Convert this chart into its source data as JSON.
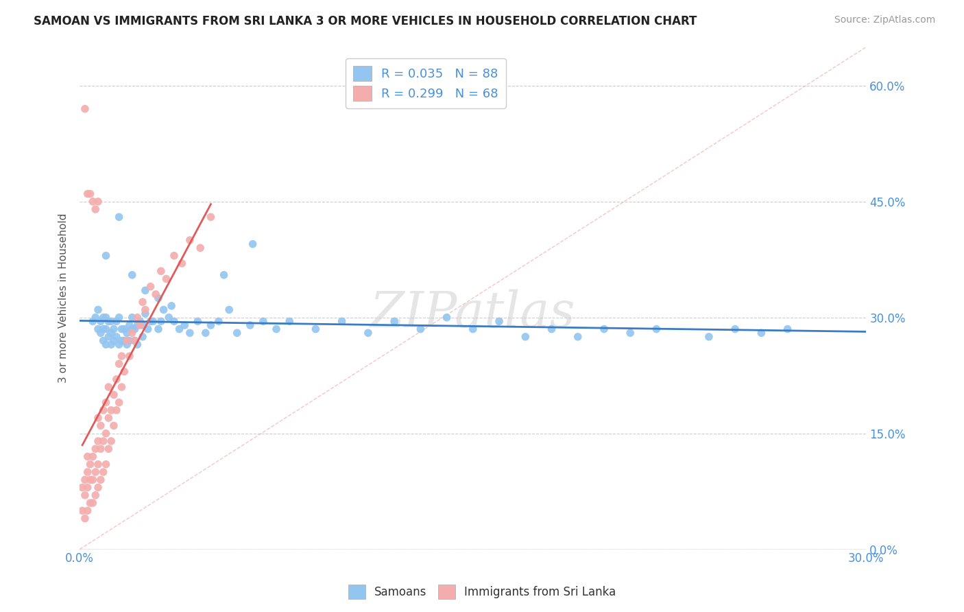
{
  "title": "SAMOAN VS IMMIGRANTS FROM SRI LANKA 3 OR MORE VEHICLES IN HOUSEHOLD CORRELATION CHART",
  "source": "Source: ZipAtlas.com",
  "xmin": 0.0,
  "xmax": 0.3,
  "ymin": 0.0,
  "ymax": 0.65,
  "yticks": [
    0.0,
    0.15,
    0.3,
    0.45,
    0.6
  ],
  "ytick_labels": [
    "0.0%",
    "15.0%",
    "30.0%",
    "45.0%",
    "60.0%"
  ],
  "legend_label1": "R = 0.035   N = 88",
  "legend_label2": "R = 0.299   N = 68",
  "watermark": "ZIPatlas",
  "blue_color": "#92C5F0",
  "pink_color": "#F4ACAC",
  "blue_line_color": "#3A7CC4",
  "pink_line_color": "#E05A5A",
  "background_color": "#FFFFFF",
  "grid_color": "#CCCCCC",
  "blue_scatter_x": [
    0.005,
    0.006,
    0.007,
    0.007,
    0.008,
    0.008,
    0.009,
    0.009,
    0.009,
    0.01,
    0.01,
    0.01,
    0.011,
    0.011,
    0.012,
    0.012,
    0.012,
    0.013,
    0.013,
    0.014,
    0.014,
    0.015,
    0.015,
    0.016,
    0.016,
    0.017,
    0.017,
    0.018,
    0.018,
    0.019,
    0.019,
    0.02,
    0.02,
    0.021,
    0.021,
    0.022,
    0.022,
    0.023,
    0.024,
    0.024,
    0.025,
    0.026,
    0.027,
    0.028,
    0.03,
    0.031,
    0.032,
    0.034,
    0.036,
    0.038,
    0.04,
    0.042,
    0.045,
    0.048,
    0.05,
    0.053,
    0.057,
    0.06,
    0.065,
    0.07,
    0.075,
    0.08,
    0.09,
    0.1,
    0.11,
    0.12,
    0.13,
    0.14,
    0.15,
    0.16,
    0.17,
    0.18,
    0.19,
    0.2,
    0.21,
    0.22,
    0.24,
    0.25,
    0.26,
    0.27,
    0.01,
    0.015,
    0.02,
    0.025,
    0.03,
    0.035,
    0.055,
    0.066
  ],
  "blue_scatter_y": [
    0.295,
    0.3,
    0.285,
    0.31,
    0.28,
    0.295,
    0.27,
    0.285,
    0.3,
    0.265,
    0.285,
    0.3,
    0.275,
    0.295,
    0.265,
    0.28,
    0.295,
    0.27,
    0.285,
    0.275,
    0.295,
    0.265,
    0.3,
    0.27,
    0.285,
    0.27,
    0.285,
    0.265,
    0.28,
    0.27,
    0.29,
    0.285,
    0.3,
    0.27,
    0.285,
    0.265,
    0.29,
    0.295,
    0.275,
    0.29,
    0.305,
    0.285,
    0.295,
    0.295,
    0.285,
    0.295,
    0.31,
    0.3,
    0.295,
    0.285,
    0.29,
    0.28,
    0.295,
    0.28,
    0.29,
    0.295,
    0.31,
    0.28,
    0.29,
    0.295,
    0.285,
    0.295,
    0.285,
    0.295,
    0.28,
    0.295,
    0.285,
    0.3,
    0.285,
    0.295,
    0.275,
    0.285,
    0.275,
    0.285,
    0.28,
    0.285,
    0.275,
    0.285,
    0.28,
    0.285,
    0.38,
    0.43,
    0.355,
    0.335,
    0.325,
    0.315,
    0.355,
    0.395
  ],
  "pink_scatter_x": [
    0.001,
    0.001,
    0.002,
    0.002,
    0.002,
    0.003,
    0.003,
    0.003,
    0.003,
    0.004,
    0.004,
    0.004,
    0.005,
    0.005,
    0.005,
    0.006,
    0.006,
    0.006,
    0.007,
    0.007,
    0.007,
    0.007,
    0.008,
    0.008,
    0.008,
    0.009,
    0.009,
    0.009,
    0.01,
    0.01,
    0.01,
    0.011,
    0.011,
    0.011,
    0.012,
    0.012,
    0.013,
    0.013,
    0.014,
    0.014,
    0.015,
    0.015,
    0.016,
    0.016,
    0.017,
    0.018,
    0.019,
    0.02,
    0.021,
    0.022,
    0.023,
    0.024,
    0.025,
    0.027,
    0.029,
    0.031,
    0.033,
    0.036,
    0.039,
    0.042,
    0.046,
    0.05,
    0.002,
    0.003,
    0.004,
    0.005,
    0.006,
    0.007
  ],
  "pink_scatter_y": [
    0.05,
    0.08,
    0.04,
    0.07,
    0.09,
    0.05,
    0.08,
    0.1,
    0.12,
    0.06,
    0.09,
    0.11,
    0.06,
    0.09,
    0.12,
    0.07,
    0.1,
    0.13,
    0.08,
    0.11,
    0.14,
    0.17,
    0.09,
    0.13,
    0.16,
    0.1,
    0.14,
    0.18,
    0.11,
    0.15,
    0.19,
    0.13,
    0.17,
    0.21,
    0.14,
    0.18,
    0.16,
    0.2,
    0.18,
    0.22,
    0.19,
    0.24,
    0.21,
    0.25,
    0.23,
    0.27,
    0.25,
    0.28,
    0.27,
    0.3,
    0.29,
    0.32,
    0.31,
    0.34,
    0.33,
    0.36,
    0.35,
    0.38,
    0.37,
    0.4,
    0.39,
    0.43,
    0.57,
    0.46,
    0.46,
    0.45,
    0.44,
    0.45
  ]
}
